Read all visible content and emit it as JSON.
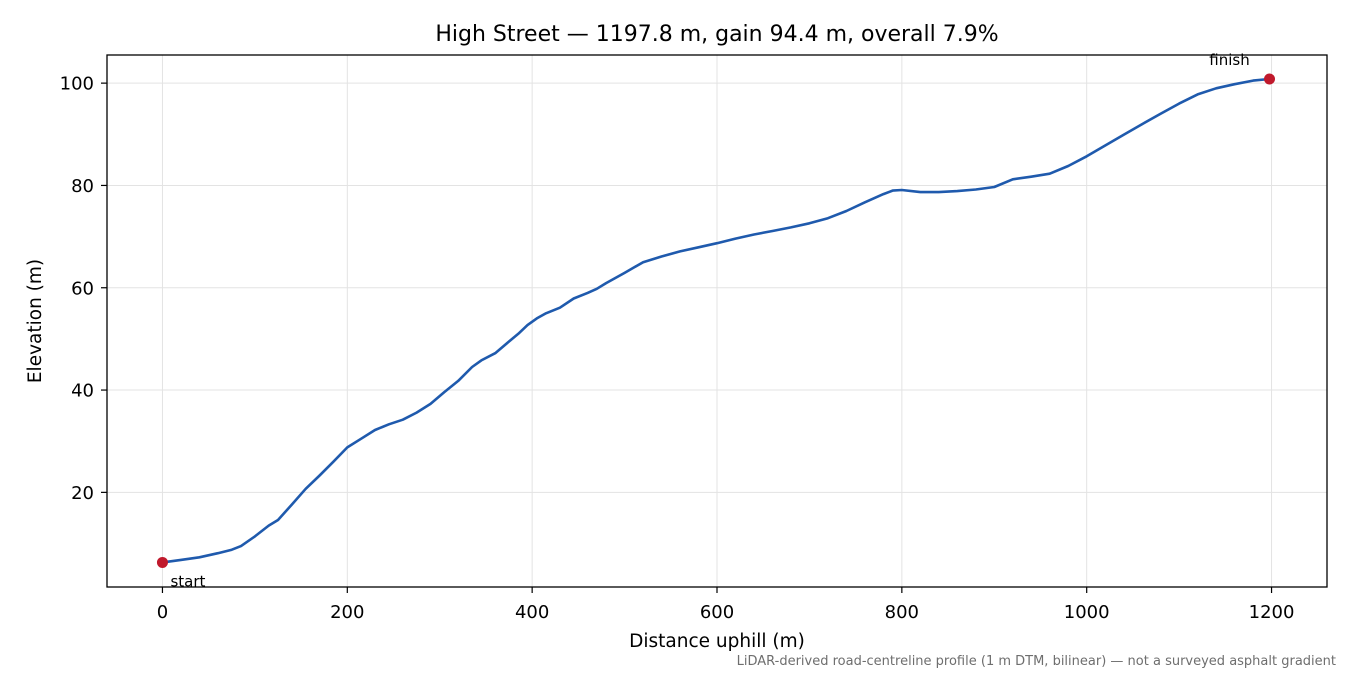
{
  "chart_data": {
    "type": "line",
    "title": "High Street — 1197.8 m, gain 94.4 m, overall 7.9%",
    "xlabel": "Distance uphill (m)",
    "ylabel": "Elevation (m)",
    "xlim": [
      -60,
      1260
    ],
    "ylim": [
      1.5,
      105.5
    ],
    "xticks": [
      0,
      200,
      400,
      600,
      800,
      1000,
      1200
    ],
    "yticks": [
      20,
      40,
      60,
      80,
      100
    ],
    "grid": true,
    "line_color": "#1f5aad",
    "marker_color": "#c0192c",
    "series": [
      {
        "x": [
          0,
          20,
          40,
          60,
          75,
          85,
          100,
          115,
          125,
          140,
          155,
          170,
          185,
          200,
          215,
          230,
          245,
          260,
          275,
          290,
          305,
          320,
          335,
          345,
          360,
          375,
          385,
          395,
          405,
          415,
          430,
          445,
          460,
          470,
          480,
          500,
          520,
          540,
          560,
          580,
          600,
          620,
          640,
          660,
          680,
          700,
          720,
          740,
          760,
          780,
          790,
          800,
          820,
          840,
          860,
          880,
          900,
          920,
          940,
          960,
          980,
          1000,
          1020,
          1040,
          1060,
          1080,
          1100,
          1120,
          1140,
          1160,
          1180,
          1197.8
        ],
        "y": [
          6.3,
          6.8,
          7.3,
          8.1,
          8.8,
          9.5,
          11.4,
          13.5,
          14.6,
          17.6,
          20.7,
          23.3,
          26.0,
          28.8,
          30.5,
          32.2,
          33.3,
          34.2,
          35.6,
          37.3,
          39.6,
          41.8,
          44.5,
          45.8,
          47.2,
          49.5,
          51.0,
          52.7,
          54.0,
          55.0,
          56.1,
          57.9,
          59.0,
          59.8,
          60.9,
          62.9,
          65.0,
          66.1,
          67.1,
          67.9,
          68.7,
          69.6,
          70.4,
          71.1,
          71.8,
          72.6,
          73.6,
          75.0,
          76.7,
          78.3,
          79.0,
          79.1,
          78.7,
          78.7,
          78.9,
          79.2,
          79.7,
          81.2,
          81.7,
          82.3,
          83.8,
          85.7,
          87.8,
          89.9,
          92.0,
          94.0,
          96.0,
          97.8,
          99.0,
          99.8,
          100.5,
          100.8
        ]
      }
    ],
    "annotations": [
      {
        "text": "start",
        "x": 0,
        "y": 6.3
      },
      {
        "text": "finish",
        "x": 1197.8,
        "y": 100.8
      }
    ],
    "footnote": "LiDAR-derived road-centreline profile (1 m DTM, bilinear) — not a surveyed asphalt gradient"
  }
}
